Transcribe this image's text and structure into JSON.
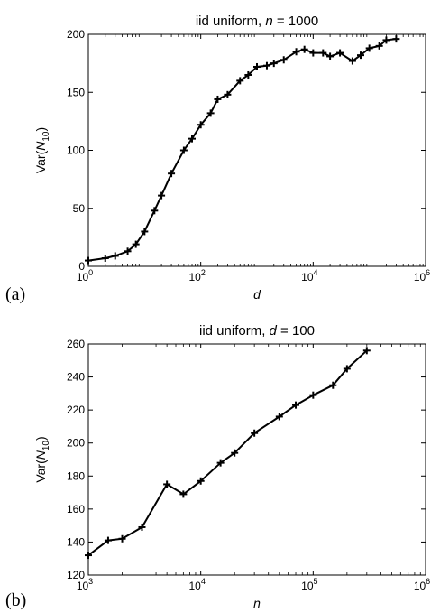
{
  "chart_data": [
    {
      "type": "line",
      "panel_label": "(a)",
      "title": "iid uniform, n = 1000",
      "title_parts": [
        "iid uniform, ",
        "n",
        " = 1000"
      ],
      "xlabel": "d",
      "ylabel": "Var(N10)",
      "ylabel_parts": [
        "Var(",
        "N",
        "10",
        ")"
      ],
      "xscale": "log",
      "xlim": [
        1,
        1000000
      ],
      "ylim": [
        0,
        200
      ],
      "xticks": [
        1,
        100,
        10000,
        1000000
      ],
      "xtick_labels": [
        [
          "10",
          "0"
        ],
        [
          "10",
          "2"
        ],
        [
          "10",
          "4"
        ],
        [
          "10",
          "6"
        ]
      ],
      "yticks": [
        0,
        50,
        100,
        150,
        200
      ],
      "ytick_labels": [
        "0",
        "50",
        "100",
        "150",
        "200"
      ],
      "grid": false,
      "marker": "plus",
      "color": "#000000",
      "x": [
        1,
        2,
        3,
        5,
        7,
        10,
        15,
        20,
        30,
        50,
        70,
        100,
        150,
        200,
        300,
        500,
        700,
        1000,
        1500,
        2000,
        3000,
        5000,
        7000,
        10000,
        15000,
        20000,
        30000,
        50000,
        70000,
        100000,
        150000,
        200000,
        300000
      ],
      "y": [
        5,
        7,
        9,
        13,
        19,
        30,
        48,
        61,
        80,
        100,
        110,
        122,
        132,
        144,
        148,
        160,
        165,
        172,
        173,
        175,
        178,
        185,
        187,
        184,
        184,
        181,
        184,
        177,
        182,
        188,
        190,
        195,
        196
      ]
    },
    {
      "type": "line",
      "panel_label": "(b)",
      "title": "iid uniform, d = 100",
      "title_parts": [
        "iid uniform, ",
        "d",
        " = 100"
      ],
      "xlabel": "n",
      "ylabel": "Var(N10)",
      "ylabel_parts": [
        "Var(",
        "N",
        "10",
        ")"
      ],
      "xscale": "log",
      "xlim": [
        1000,
        1000000
      ],
      "ylim": [
        120,
        260
      ],
      "xticks": [
        1000,
        10000,
        100000,
        1000000
      ],
      "xtick_labels": [
        [
          "10",
          "3"
        ],
        [
          "10",
          "4"
        ],
        [
          "10",
          "5"
        ],
        [
          "10",
          "6"
        ]
      ],
      "yticks": [
        120,
        140,
        160,
        180,
        200,
        220,
        240,
        260
      ],
      "ytick_labels": [
        "120",
        "140",
        "160",
        "180",
        "200",
        "220",
        "240",
        "260"
      ],
      "grid": false,
      "marker": "plus",
      "color": "#000000",
      "x": [
        1000,
        1500,
        2000,
        3000,
        5000,
        7000,
        10000,
        15000,
        20000,
        30000,
        50000,
        70000,
        100000,
        150000,
        200000,
        300000
      ],
      "y": [
        132,
        141,
        142,
        149,
        175,
        169,
        177,
        188,
        194,
        206,
        216,
        223,
        229,
        235,
        245,
        256
      ]
    }
  ]
}
